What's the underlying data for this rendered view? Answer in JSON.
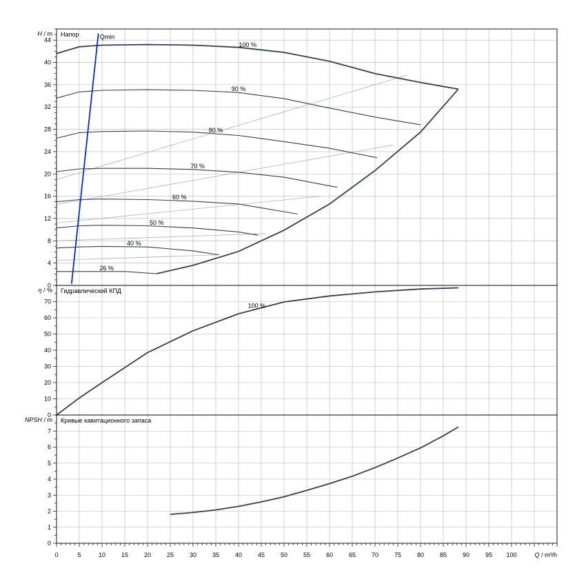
{
  "chart_data": [
    {
      "type": "line",
      "title": "Напор",
      "ylabel_var": "H",
      "ylabel_unit": " / m",
      "xlim": [
        0,
        110
      ],
      "ylim": [
        0,
        46
      ],
      "y_ticks": [
        0,
        4,
        8,
        12,
        16,
        20,
        24,
        28,
        32,
        36,
        40,
        44
      ],
      "series": [
        {
          "name": "100 %",
          "x": [
            0,
            5,
            10,
            20,
            30,
            40,
            50,
            60,
            70,
            80,
            88.3
          ],
          "y": [
            41.6,
            42.8,
            43.1,
            43.2,
            43.1,
            42.7,
            41.8,
            40.2,
            38.0,
            36.4,
            35.2
          ]
        },
        {
          "name": "90 %",
          "x": [
            0,
            5,
            10,
            20,
            30,
            40,
            50,
            60,
            70,
            80
          ],
          "y": [
            33.6,
            34.7,
            35.0,
            35.1,
            35.0,
            34.6,
            33.5,
            31.8,
            30.2,
            28.8
          ]
        },
        {
          "name": "80 %",
          "x": [
            0,
            5,
            10,
            20,
            30,
            40,
            50,
            60,
            70.5
          ],
          "y": [
            26.4,
            27.4,
            27.6,
            27.7,
            27.5,
            26.9,
            25.8,
            24.6,
            22.9
          ]
        },
        {
          "name": "70 %",
          "x": [
            0,
            5,
            10,
            20,
            30,
            40,
            50,
            61.7
          ],
          "y": [
            20.4,
            20.9,
            21.0,
            21.0,
            20.8,
            20.3,
            19.4,
            17.6
          ]
        },
        {
          "name": "60 %",
          "x": [
            0,
            5,
            10,
            20,
            30,
            40,
            53
          ],
          "y": [
            15.0,
            15.4,
            15.5,
            15.4,
            15.1,
            14.6,
            12.8
          ]
        },
        {
          "name": "50 %",
          "x": [
            0,
            5,
            10,
            20,
            30,
            40,
            44.3
          ],
          "y": [
            10.3,
            10.7,
            10.8,
            10.7,
            10.3,
            9.6,
            9.0
          ]
        },
        {
          "name": "40 %",
          "x": [
            0,
            5,
            10,
            20,
            30,
            35.6
          ],
          "y": [
            6.7,
            6.9,
            7.0,
            6.9,
            6.2,
            5.5
          ]
        },
        {
          "name": "26 %",
          "x": [
            0,
            5,
            10,
            15,
            22
          ],
          "y": [
            2.5,
            2.5,
            2.5,
            2.5,
            2.1
          ]
        }
      ],
      "operating_limit": {
        "x": [
          22,
          30,
          40,
          50,
          60,
          70,
          80,
          88.3
        ],
        "y": [
          2.1,
          3.6,
          6.1,
          9.9,
          14.6,
          20.6,
          27.5,
          35.2
        ]
      },
      "efficiency_lines": [
        {
          "x": [
            0,
            77
          ],
          "y": [
            19.0,
            37.7
          ]
        },
        {
          "x": [
            0,
            74
          ],
          "y": [
            14.5,
            25.2
          ]
        },
        {
          "x": [
            0,
            58
          ],
          "y": [
            11.2,
            16.0
          ]
        },
        {
          "x": [
            0,
            46
          ],
          "y": [
            8.0,
            9.3
          ]
        },
        {
          "x": [
            0,
            36
          ],
          "y": [
            4.5,
            5.5
          ]
        }
      ],
      "qmin": {
        "label": "Qmin",
        "x": [
          3.3,
          9.2
        ],
        "y": [
          0.3,
          45.2
        ],
        "color": "#0a28c8"
      }
    },
    {
      "type": "line",
      "title": "Гидравлический КПД",
      "ylabel_var": "η",
      "ylabel_unit": " / %",
      "xlim": [
        0,
        110
      ],
      "ylim": [
        0,
        80
      ],
      "y_ticks": [
        0,
        10,
        20,
        30,
        40,
        50,
        60,
        70
      ],
      "series": [
        {
          "name": "100 %",
          "x": [
            0,
            5,
            10,
            20,
            30,
            40,
            50,
            60,
            70,
            80,
            88.3
          ],
          "y": [
            0,
            10.5,
            20.0,
            38.5,
            52.0,
            62.5,
            69.8,
            73.5,
            76.0,
            77.8,
            78.5
          ]
        }
      ]
    },
    {
      "type": "line",
      "title": "Кривые кавитационного запаса",
      "ylabel_var": "NPSH",
      "ylabel_unit": " / m",
      "xlim": [
        0,
        110
      ],
      "ylim": [
        0,
        8
      ],
      "y_ticks": [
        0,
        1,
        2,
        3,
        4,
        5,
        6,
        7
      ],
      "series": [
        {
          "name": "",
          "x": [
            25,
            30,
            35,
            40,
            45,
            50,
            55,
            60,
            65,
            70,
            75,
            80,
            85,
            88.3
          ],
          "y": [
            1.8,
            1.92,
            2.08,
            2.3,
            2.58,
            2.9,
            3.3,
            3.72,
            4.18,
            4.72,
            5.32,
            5.95,
            6.7,
            7.25
          ]
        }
      ]
    }
  ],
  "x_axis": {
    "label_var": "Q",
    "label_unit": " / m³/h",
    "ticks": [
      0,
      5,
      10,
      15,
      20,
      25,
      30,
      35,
      40,
      45,
      50,
      55,
      60,
      65,
      70,
      75,
      80,
      85,
      90,
      95,
      100
    ]
  },
  "colors": {
    "curve": "#333d4f",
    "grid": "#b4b4b4",
    "eff": "#b0b0b0",
    "qmin": "#0a28c8"
  }
}
